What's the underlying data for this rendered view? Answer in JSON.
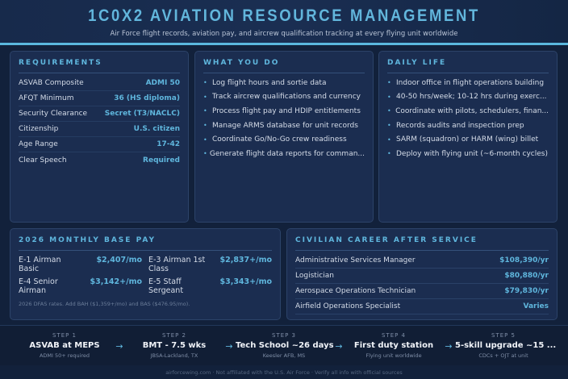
{
  "header": {
    "title": "1C0X2 AVIATION RESOURCE MANAGEMENT",
    "subtitle": "Air Force flight records, aviation pay, and aircrew qualification tracking at every flying unit worldwide"
  },
  "requirements": {
    "title": "REQUIREMENTS",
    "rows": [
      {
        "label": "ASVAB Composite",
        "value": "ADMI 50"
      },
      {
        "label": "AFQT Minimum",
        "value": "36 (HS diploma)"
      },
      {
        "label": "Security Clearance",
        "value": "Secret (T3/NACLC)"
      },
      {
        "label": "Citizenship",
        "value": "U.S. citizen"
      },
      {
        "label": "Age Range",
        "value": "17-42"
      },
      {
        "label": "Clear Speech",
        "value": "Required"
      }
    ]
  },
  "what_you_do": {
    "title": "WHAT YOU DO",
    "items": [
      "Log flight hours and sortie data",
      "Track aircrew qualifications and currency",
      "Process flight pay and HDIP entitlements",
      "Manage ARMS database for unit records",
      "Coordinate Go/No-Go crew readiness",
      "Generate flight data reports for comman..."
    ]
  },
  "daily_life": {
    "title": "DAILY LIFE",
    "items": [
      "Indoor office in flight operations building",
      "40-50 hrs/week; 10-12 hrs during exerc...",
      "Coordinate with pilots, schedulers, finan...",
      "Records audits and inspection prep",
      "SARM (squadron) or HARM (wing) billet",
      "Deploy with flying unit (~6-month cycles)"
    ]
  },
  "pay": {
    "title": "2026 MONTHLY BASE PAY",
    "rows": [
      {
        "label": "E-1 Airman Basic",
        "value": "$2,407/mo"
      },
      {
        "label": "E-3 Airman 1st Class",
        "value": "$2,837+/mo"
      },
      {
        "label": "E-4 Senior Airman",
        "value": "$3,142+/mo"
      },
      {
        "label": "E-5 Staff Sergeant",
        "value": "$3,343+/mo"
      }
    ],
    "note": "2026 DFAS rates. Add BAH ($1,359+/mo) and BAS ($476.95/mo)."
  },
  "civilian": {
    "title": "CIVILIAN CAREER AFTER SERVICE",
    "rows": [
      {
        "label": "Administrative Services Manager",
        "value": "$108,390/yr"
      },
      {
        "label": "Logistician",
        "value": "$80,880/yr"
      },
      {
        "label": "Aerospace Operations Technician",
        "value": "$79,830/yr"
      },
      {
        "label": "Airfield Operations Specialist",
        "value": "Varies"
      }
    ]
  },
  "steps": [
    {
      "n": "STEP 1",
      "t": "ASVAB at MEPS",
      "d": "ADMI 50+ required"
    },
    {
      "n": "STEP 2",
      "t": "BMT - 7.5 wks",
      "d": "JBSA-Lackland, TX"
    },
    {
      "n": "STEP 3",
      "t": "Tech School ~26 days",
      "d": "Keesler AFB, MS"
    },
    {
      "n": "STEP 4",
      "t": "First duty station",
      "d": "Flying unit worldwide"
    },
    {
      "n": "STEP 5",
      "t": "5-skill upgrade ~15 ...",
      "d": "CDCs + OJT at unit"
    }
  ],
  "arrow": "→",
  "footer": "airforcewing.com · Not affiliated with the U.S. Air Force · Verify all info with official sources"
}
